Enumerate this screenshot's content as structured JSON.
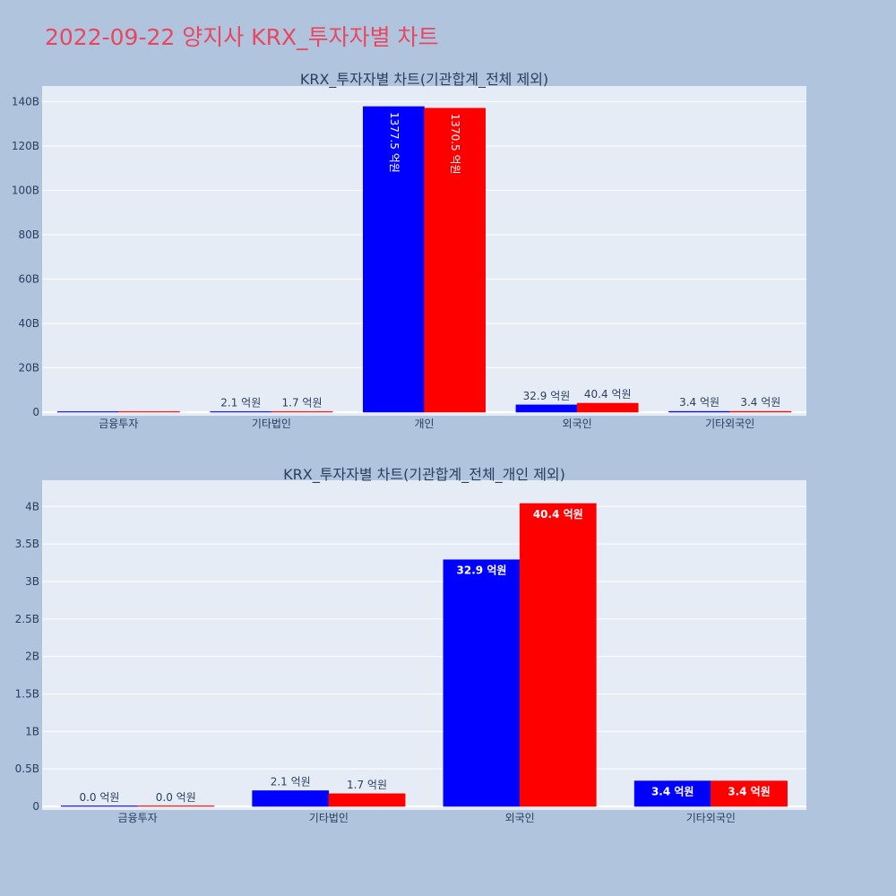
{
  "page": {
    "title": "2022-09-22 양지사 KRX_투자자별 차트"
  },
  "colors": {
    "background": "#b0c4de",
    "plot_bg": "#e5ecf6",
    "title": "#e8475f",
    "buy": "#0000ff",
    "sell": "#ff0000"
  },
  "chart_data": [
    {
      "type": "bar",
      "title": "KRX_투자자별 차트(기관합계_전체 제외)",
      "categories": [
        "금융투자",
        "기타법인",
        "개인",
        "외국인",
        "기타외국인"
      ],
      "ylim": [
        0,
        145
      ],
      "yticks": [
        0,
        20,
        40,
        60,
        80,
        100,
        120,
        140
      ],
      "ytick_labels": [
        "0",
        "20B",
        "40B",
        "60B",
        "80B",
        "100B",
        "120B",
        "140B"
      ],
      "series": [
        {
          "values": [
            0,
            0.21,
            137.75,
            3.29,
            0.34
          ],
          "labels": [
            "",
            "2.1 억원",
            "1377.5 억원",
            "32.9 억원",
            "3.4 억원"
          ]
        },
        {
          "values": [
            0,
            0.17,
            137.05,
            4.04,
            0.34
          ],
          "labels": [
            "",
            "1.7 억원",
            "1370.5 억원",
            "40.4 억원",
            "3.4 억원"
          ]
        }
      ]
    },
    {
      "type": "bar",
      "title": "KRX_투자자별 차트(기관합계_전체_개인 제외)",
      "categories": [
        "금융투자",
        "기타법인",
        "외국인",
        "기타외국인"
      ],
      "ylim": [
        0,
        4.29
      ],
      "yticks": [
        0,
        0.5,
        1,
        1.5,
        2,
        2.5,
        3,
        3.5,
        4
      ],
      "ytick_labels": [
        "0",
        "0.5B",
        "1B",
        "1.5B",
        "2B",
        "2.5B",
        "3B",
        "3.5B",
        "4B"
      ],
      "series": [
        {
          "values": [
            0,
            0.21,
            3.29,
            0.34
          ],
          "labels": [
            "0.0 억원",
            "2.1 억원",
            "32.9 억원",
            "3.4 억원"
          ]
        },
        {
          "values": [
            0,
            0.17,
            4.04,
            0.34
          ],
          "labels": [
            "0.0 억원",
            "1.7 억원",
            "40.4 억원",
            "3.4 억원"
          ]
        }
      ]
    }
  ]
}
